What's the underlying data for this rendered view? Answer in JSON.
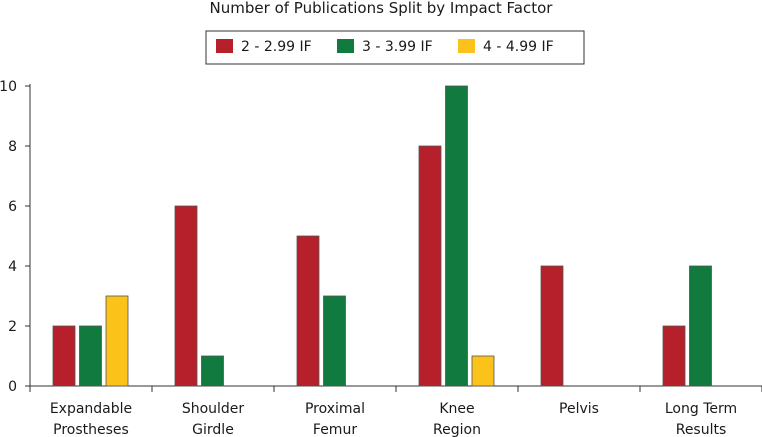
{
  "chart_data": {
    "type": "bar",
    "title": "Number of Publications Split by Impact Factor",
    "categories": [
      [
        "Expandable",
        "Prostheses"
      ],
      [
        "Shoulder",
        "Girdle"
      ],
      [
        "Proximal",
        "Femur"
      ],
      [
        "Knee",
        "Region"
      ],
      [
        "Pelvis"
      ],
      [
        "Long Term",
        "Results"
      ]
    ],
    "series": [
      {
        "name": "2 - 2.99 IF",
        "color": "#b5202a",
        "values": [
          2,
          6,
          5,
          8,
          4,
          2
        ]
      },
      {
        "name": "3 - 3.99 IF",
        "color": "#117a3e",
        "values": [
          2,
          1,
          3,
          10,
          0,
          4
        ]
      },
      {
        "name": "4 - 4.99 IF",
        "color": "#fbc21a",
        "values": [
          3,
          0,
          0,
          1,
          0,
          0
        ]
      }
    ],
    "ylim": [
      0,
      10
    ],
    "yticks": [
      0,
      2,
      4,
      6,
      8,
      10
    ],
    "xlabel": "",
    "ylabel": "",
    "grid": false,
    "legend": "top-center"
  }
}
